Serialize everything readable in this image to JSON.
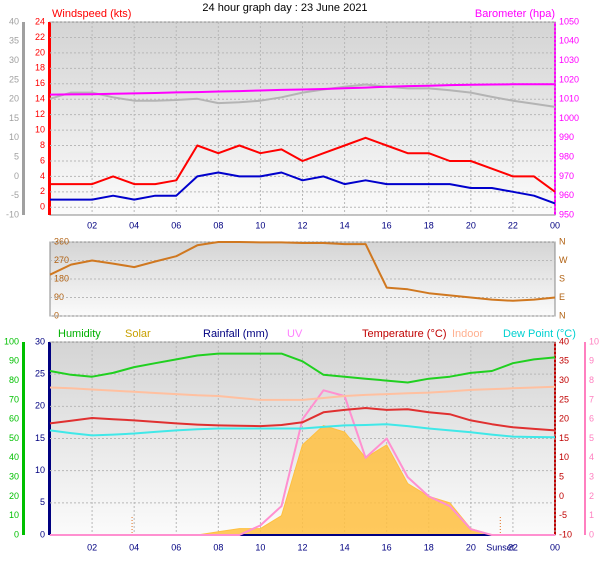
{
  "chart_data": [
    {
      "type": "line",
      "title": "24 hour graph day : 23 June 2021",
      "x": [
        0,
        1,
        2,
        3,
        4,
        5,
        6,
        7,
        8,
        9,
        10,
        11,
        12,
        13,
        14,
        15,
        16,
        17,
        18,
        19,
        20,
        21,
        22,
        23,
        24
      ],
      "xlim": [
        0,
        24
      ],
      "xticks": [
        {
          "value": 2,
          "label": "02"
        },
        {
          "value": 4,
          "label": "04"
        },
        {
          "value": 6,
          "label": "06"
        },
        {
          "value": 8,
          "label": "08"
        },
        10,
        12,
        14,
        16,
        18,
        20,
        22,
        {
          "value": 24,
          "label": "00"
        }
      ],
      "grid": true,
      "axes": [
        {
          "side": "left",
          "color": "#a0a0a0",
          "lim": [
            -10,
            40
          ],
          "ticks": [
            -10,
            -5,
            0,
            5,
            10,
            15,
            20,
            25,
            30,
            35,
            40
          ]
        },
        {
          "side": "left",
          "label": "Windspeed (kts)",
          "color": "#ff0000",
          "lim": [
            -1,
            24
          ],
          "ticks": [
            0,
            2,
            4,
            6,
            8,
            10,
            12,
            14,
            16,
            18,
            20,
            22,
            24
          ]
        },
        {
          "side": "right",
          "label": "Barometer (hpa)",
          "color": "#ff00ff",
          "lim": [
            950,
            1050
          ],
          "ticks": [
            950,
            960,
            970,
            980,
            990,
            1000,
            1010,
            1020,
            1030,
            1040,
            1050
          ]
        }
      ],
      "series": [
        {
          "axis": 0,
          "color": "#b4b4b4",
          "values": [
            20.1,
            21.7,
            21.7,
            20.5,
            19.6,
            19.6,
            19.8,
            20.1,
            19,
            19.2,
            19.6,
            20.5,
            21.7,
            22.5,
            23.2,
            23.8,
            23.2,
            22.8,
            22.8,
            22.3,
            21.7,
            20.6,
            19.6,
            18.8,
            18
          ]
        },
        {
          "axis": 1,
          "color": "#ff0000",
          "values": [
            3,
            3,
            3,
            4,
            3,
            3,
            3.5,
            8,
            7,
            8,
            7,
            7.5,
            6,
            7,
            8,
            9,
            8,
            7,
            7,
            6,
            6,
            5,
            4,
            4,
            2
          ]
        },
        {
          "axis": 1,
          "color": "#0000cc",
          "values": [
            1,
            1,
            1,
            1.5,
            1,
            1.5,
            1.5,
            4,
            4.5,
            4,
            4,
            4.5,
            3.5,
            4,
            3,
            3.5,
            3,
            3,
            3,
            3,
            2.5,
            2.5,
            2,
            1.5,
            0.5
          ]
        },
        {
          "axis": 2,
          "color": "#ff00ff",
          "values": [
            1012.4,
            1012.5,
            1012.6,
            1012.8,
            1013,
            1013.2,
            1013.5,
            1013.7,
            1014,
            1014.2,
            1014.5,
            1014.8,
            1015,
            1015.3,
            1015.7,
            1016,
            1016.5,
            1016.8,
            1017,
            1017.3,
            1017.5,
            1017.6,
            1017.7,
            1017.7,
            1017.7
          ]
        }
      ]
    },
    {
      "type": "line",
      "x": [
        0,
        1,
        2,
        3,
        4,
        5,
        6,
        7,
        8,
        9,
        10,
        11,
        12,
        13,
        14,
        15,
        16,
        17,
        18,
        19,
        20,
        21,
        22,
        23,
        24
      ],
      "xlim": [
        0,
        24
      ],
      "grid": true,
      "axes": [
        {
          "side": "left",
          "color": "#b06010",
          "lim": [
            0,
            360
          ],
          "ticks": [
            0,
            90,
            180,
            270,
            360
          ]
        },
        {
          "side": "right",
          "color": "#b06010",
          "lim": [
            0,
            360
          ],
          "ticks": [
            {
              "value": 0,
              "label": "N"
            },
            {
              "value": 90,
              "label": "E"
            },
            {
              "value": 180,
              "label": "S"
            },
            {
              "value": 270,
              "label": "W"
            },
            {
              "value": 360,
              "label": "N"
            }
          ]
        }
      ],
      "series": [
        {
          "axis": 0,
          "color": "#d07820",
          "values": [
            201,
            250,
            270,
            255,
            238,
            265,
            291,
            344,
            360,
            360,
            358,
            358,
            355,
            355,
            350,
            350,
            138,
            130,
            111,
            100,
            90,
            80,
            74,
            80,
            90
          ]
        }
      ]
    },
    {
      "type": "line",
      "x": [
        0,
        1,
        2,
        3,
        4,
        5,
        6,
        7,
        8,
        9,
        10,
        11,
        12,
        13,
        14,
        15,
        16,
        17,
        18,
        19,
        20,
        21,
        22,
        23,
        24
      ],
      "xlim": [
        0,
        24
      ],
      "xticks": [
        {
          "value": 2,
          "label": "02"
        },
        {
          "value": 4,
          "label": "04"
        },
        {
          "value": 6,
          "label": "06"
        },
        {
          "value": 8,
          "label": "08"
        },
        10,
        12,
        14,
        16,
        18,
        20,
        22,
        {
          "value": 24,
          "label": "00"
        }
      ],
      "grid": true,
      "axes": [
        {
          "side": "left",
          "color": "#00c000",
          "lim": [
            0,
            100
          ],
          "ticks": [
            0,
            10,
            20,
            30,
            40,
            50,
            60,
            70,
            80,
            90,
            100
          ]
        },
        {
          "side": "left",
          "color": "#000080",
          "lim": [
            0,
            30
          ],
          "ticks": [
            0,
            5,
            10,
            15,
            20,
            25,
            30
          ]
        },
        {
          "side": "right",
          "color": "#c00000",
          "lim": [
            -10,
            40
          ],
          "ticks": [
            -10,
            -5,
            0,
            5,
            10,
            15,
            20,
            25,
            30,
            35,
            40
          ]
        },
        {
          "side": "right",
          "color": "#ff80c0",
          "lim": [
            0,
            10
          ],
          "ticks": [
            0,
            1,
            2,
            3,
            4,
            5,
            6,
            7,
            8,
            9,
            10
          ]
        }
      ],
      "series": [
        {
          "name": "Humidity",
          "axis": 0,
          "color": "#20d020",
          "label_color": "#00b000",
          "values": [
            85,
            83,
            82,
            84,
            87,
            89,
            91,
            93,
            94,
            94,
            94,
            94,
            90,
            83,
            82,
            81,
            80,
            79,
            81,
            82,
            84,
            85,
            89,
            91,
            92
          ]
        },
        {
          "name": "Solar",
          "axis": 1,
          "color": "#ffc040",
          "label_color": "#c8a000",
          "fill": true,
          "values": [
            0,
            0,
            0,
            0,
            0,
            0,
            0,
            0,
            0.5,
            1,
            1,
            3,
            14,
            17,
            16,
            12,
            14,
            8,
            6,
            5,
            1,
            0,
            0,
            0,
            0
          ]
        },
        {
          "name": "Rainfall (mm)",
          "axis": 1,
          "color": "#000080",
          "label_color": "#000080",
          "values": [
            0,
            0,
            0,
            0,
            0,
            0,
            0,
            0,
            0,
            0,
            0,
            0,
            0,
            0,
            0,
            0,
            0,
            0,
            0,
            0,
            0,
            0,
            0,
            0,
            0
          ]
        },
        {
          "name": "UV",
          "axis": 3,
          "color": "#ff90d0",
          "label_color": "#ff80ff",
          "values": [
            0,
            0,
            0,
            0,
            0,
            0,
            0,
            0,
            0,
            0,
            0.5,
            1.5,
            6,
            7.5,
            7.2,
            4,
            5,
            3,
            2,
            1.5,
            0.3,
            0,
            0,
            0,
            0
          ]
        },
        {
          "name": "Temperature (°C)",
          "axis": 2,
          "color": "#e03030",
          "label_color": "#c00000",
          "values": [
            18.9,
            19.6,
            20.3,
            20,
            19.7,
            19.3,
            18.9,
            18.6,
            18.4,
            18.3,
            18.2,
            18.5,
            19.2,
            21.8,
            22.4,
            22.9,
            22.4,
            22.6,
            21.8,
            21.3,
            19.7,
            18.7,
            17.9,
            17.5,
            17.1
          ]
        },
        {
          "name": "Indoor",
          "axis": 2,
          "color": "#ffc0a0",
          "label_color": "#ffb090",
          "values": [
            28.2,
            28,
            27.7,
            27.4,
            27.1,
            26.8,
            26.5,
            26.2,
            26,
            25.5,
            25,
            25,
            25,
            25.5,
            26,
            26.3,
            26.5,
            26.7,
            26.9,
            27.2,
            27.6,
            27.8,
            28,
            28.2,
            28.4
          ]
        },
        {
          "name": "Dew Point (°C)",
          "axis": 2,
          "color": "#40e8e8",
          "label_color": "#00d0d0",
          "values": [
            17.1,
            16.4,
            15.8,
            16,
            16.3,
            16.7,
            17.1,
            17.4,
            17.6,
            17.6,
            17.6,
            17.6,
            17.6,
            18,
            18.4,
            18.5,
            18.7,
            18.2,
            17.6,
            17.1,
            16.6,
            16,
            15.5,
            15.4,
            15.3
          ]
        }
      ],
      "markers": [
        {
          "x": 3.9
        },
        {
          "x": 21.4,
          "label": "Sunset"
        }
      ]
    }
  ]
}
